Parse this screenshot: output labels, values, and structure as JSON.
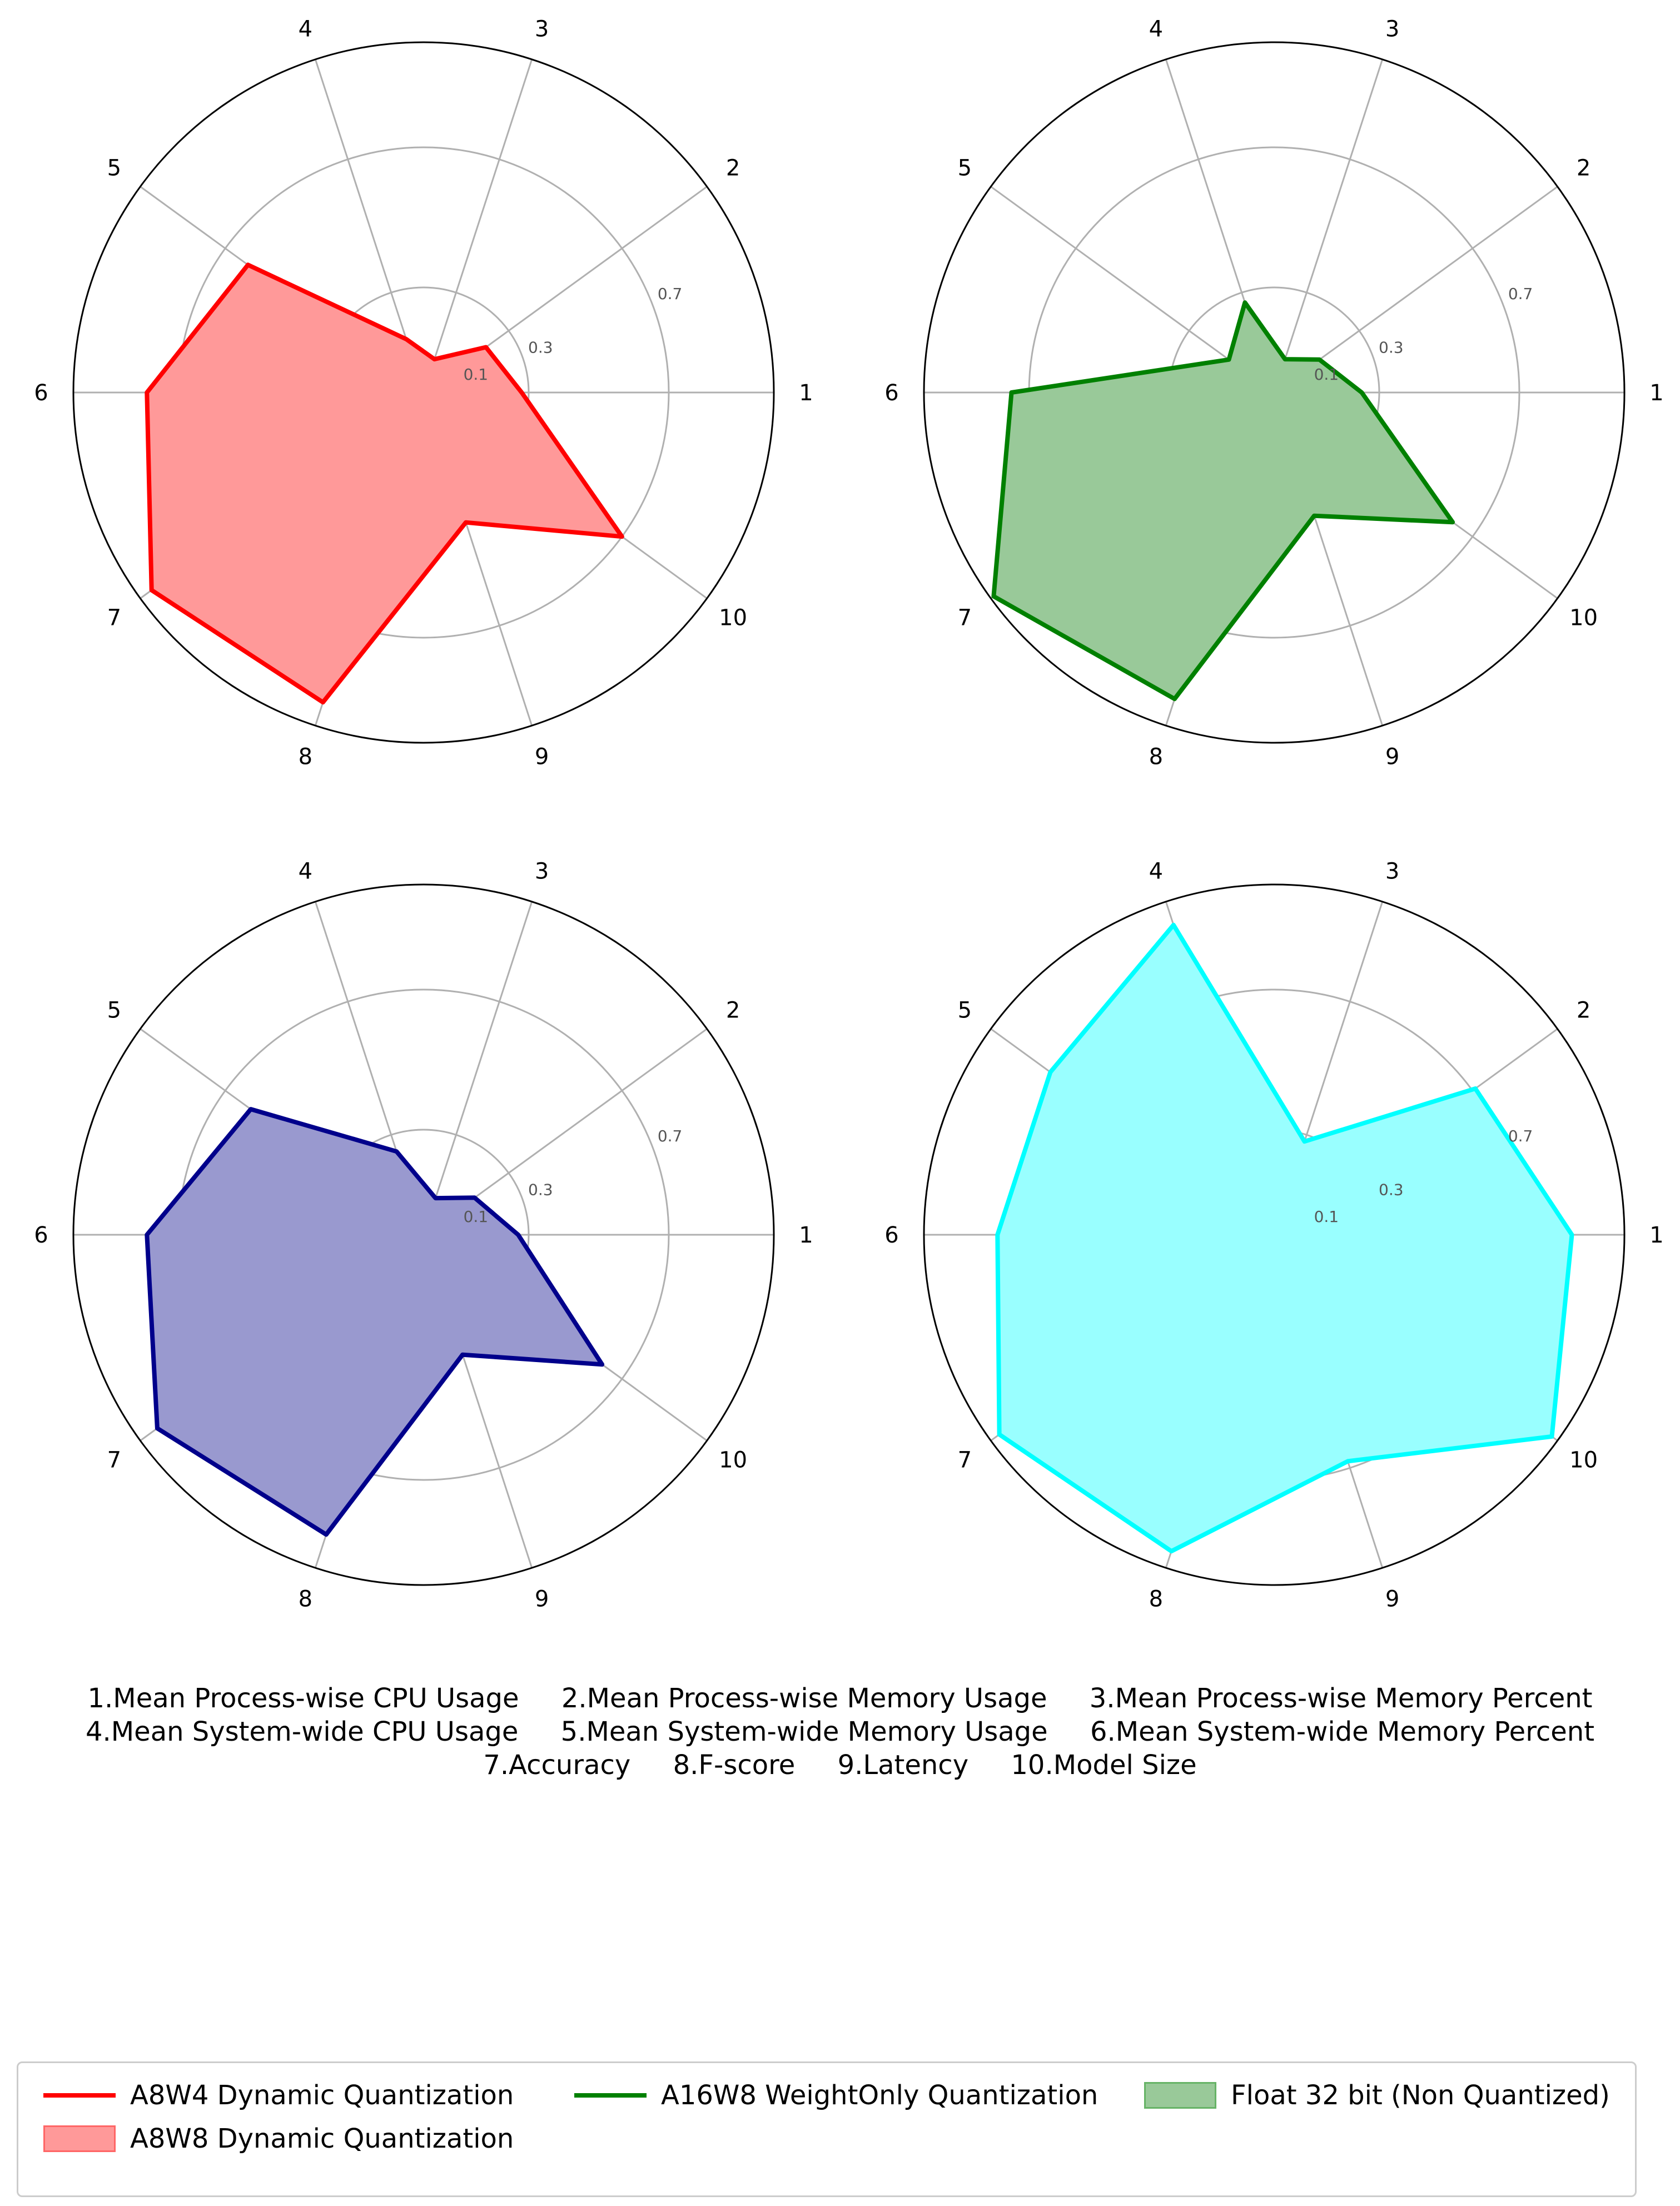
{
  "chart_data": [
    {
      "type": "radar",
      "axes": [
        "1",
        "2",
        "3",
        "4",
        "5",
        "6",
        "7",
        "8",
        "9",
        "10"
      ],
      "r_ticks": [
        0.1,
        0.3,
        0.7
      ],
      "r_tick_labels": [
        "0.1",
        "0.3",
        "0.7"
      ],
      "rlim": [
        0,
        1
      ],
      "values": [
        0.28,
        0.22,
        0.1,
        0.16,
        0.62,
        0.79,
        0.96,
        0.93,
        0.39,
        0.7
      ],
      "line_color": "#ff0000",
      "fill_color": "#ff9999"
    },
    {
      "type": "radar",
      "axes": [
        "1",
        "2",
        "3",
        "4",
        "5",
        "6",
        "7",
        "8",
        "9",
        "10"
      ],
      "r_ticks": [
        0.1,
        0.3,
        0.7
      ],
      "r_tick_labels": [
        "0.1",
        "0.3",
        "0.7"
      ],
      "rlim": [
        0,
        1
      ],
      "values": [
        0.25,
        0.16,
        0.1,
        0.27,
        0.16,
        0.75,
        0.99,
        0.92,
        0.37,
        0.63
      ],
      "line_color": "#008000",
      "fill_color": "#99c999"
    },
    {
      "type": "radar",
      "axes": [
        "1",
        "2",
        "3",
        "4",
        "5",
        "6",
        "7",
        "8",
        "9",
        "10"
      ],
      "r_ticks": [
        0.1,
        0.3,
        0.7
      ],
      "r_tick_labels": [
        "0.1",
        "0.3",
        "0.7"
      ],
      "rlim": [
        0,
        1
      ],
      "values": [
        0.27,
        0.18,
        0.11,
        0.25,
        0.61,
        0.79,
        0.94,
        0.9,
        0.36,
        0.63
      ],
      "line_color": "#00008b",
      "fill_color": "#9999cf"
    },
    {
      "type": "radar",
      "axes": [
        "1",
        "2",
        "3",
        "4",
        "5",
        "6",
        "7",
        "8",
        "9",
        "10"
      ],
      "r_ticks": [
        0.1,
        0.3,
        0.7
      ],
      "r_tick_labels": [
        "0.1",
        "0.3",
        "0.7"
      ],
      "rlim": [
        0,
        1
      ],
      "values": [
        0.85,
        0.71,
        0.28,
        0.93,
        0.79,
        0.79,
        0.97,
        0.95,
        0.68,
        0.98
      ],
      "line_color": "#00ffff",
      "fill_color": "#99ffff"
    }
  ],
  "metric_key": {
    "line1": "1.Mean Process-wise CPU Usage     2.Mean Process-wise Memory Usage     3.Mean Process-wise Memory Percent",
    "line2": "4.Mean System-wide CPU Usage     5.Mean System-wide Memory Usage     6.Mean System-wide Memory Percent",
    "line3": "7.Accuracy     8.F-score     9.Latency     10.Model Size"
  },
  "legend": {
    "items": [
      {
        "label": "A8W4 Dynamic Quantization",
        "style": "line",
        "color": "#ff0000"
      },
      {
        "label": "A16W8 WeightOnly Quantization",
        "style": "line",
        "color": "#008000"
      },
      {
        "label": "Float 32 bit (Non Quantized)",
        "style": "patch",
        "color": "#99c999",
        "edge": "#66b366"
      },
      {
        "label": "A8W8 Dynamic Quantization",
        "style": "patch",
        "color": "#ff9999",
        "edge": "#ff6666"
      }
    ]
  }
}
